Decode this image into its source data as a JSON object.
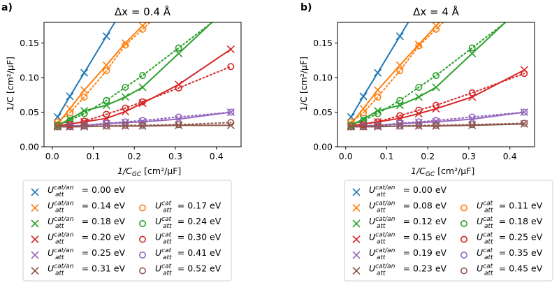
{
  "figure": {
    "colors": {
      "blue": "#1f77b4",
      "orange": "#ff7f0e",
      "green": "#2ca02c",
      "red": "#d62728",
      "purple": "#9467bd",
      "brown": "#8c564b"
    }
  },
  "chart_data": [
    {
      "type": "scatter",
      "panel_tag": "a)",
      "title": "Δx = 0.4 Å",
      "xlabel": "1/C_GC [cm²/μF]",
      "ylabel": "1/C [cm²/μF]",
      "xlim": [
        -0.02,
        0.46
      ],
      "ylim": [
        0.0,
        0.18
      ],
      "xticks": [
        "0.0",
        "0.1",
        "0.2",
        "0.3",
        "0.4"
      ],
      "yticks": [
        "0.00",
        "0.05",
        "0.10",
        "0.15"
      ],
      "x": [
        0.013,
        0.043,
        0.078,
        0.132,
        0.178,
        0.22,
        0.308,
        0.435
      ],
      "grid": false,
      "series": [
        {
          "name": "U_att^cat/an = 0.00 eV",
          "marker": "x",
          "line": "solid",
          "color": "blue",
          "values": [
            0.043,
            0.073,
            0.107,
            0.16,
            null,
            null,
            null,
            null
          ]
        },
        {
          "name": "U_att^cat/an = 0.14 eV",
          "marker": "x",
          "line": "solid",
          "color": "orange",
          "values": [
            0.033,
            0.055,
            0.082,
            0.118,
            0.15,
            0.175,
            null,
            null
          ]
        },
        {
          "name": "U_att^cat/an = 0.18 eV",
          "marker": "x",
          "line": "solid",
          "color": "green",
          "values": [
            0.031,
            0.04,
            0.052,
            0.06,
            0.072,
            0.086,
            0.135,
            null
          ]
        },
        {
          "name": "U_att^cat/an = 0.20 eV",
          "marker": "x",
          "line": "solid",
          "color": "red",
          "values": [
            0.03,
            0.033,
            0.036,
            0.041,
            0.051,
            0.063,
            0.09,
            0.141
          ]
        },
        {
          "name": "U_att^cat/an = 0.25 eV",
          "marker": "x",
          "line": "solid",
          "color": "purple",
          "values": [
            0.029,
            0.03,
            0.031,
            0.033,
            0.035,
            0.036,
            0.04,
            0.05
          ]
        },
        {
          "name": "U_att^cat/an = 0.31 eV",
          "marker": "x",
          "line": "solid",
          "color": "brown",
          "values": [
            0.029,
            0.029,
            0.029,
            0.03,
            0.03,
            0.03,
            0.031,
            0.031
          ]
        },
        {
          "name": "U_att^cat = 0.17 eV",
          "marker": "o",
          "line": "dotted",
          "color": "orange",
          "values": [
            0.036,
            0.049,
            0.072,
            0.11,
            0.147,
            0.17,
            null,
            null
          ]
        },
        {
          "name": "U_att^cat = 0.24 eV",
          "marker": "o",
          "line": "dotted",
          "color": "green",
          "values": [
            0.031,
            0.038,
            0.048,
            0.067,
            0.086,
            0.103,
            0.143,
            null
          ]
        },
        {
          "name": "U_att^cat = 0.30 eV",
          "marker": "o",
          "line": "dotted",
          "color": "red",
          "values": [
            0.029,
            0.032,
            0.037,
            0.047,
            0.056,
            0.065,
            0.085,
            0.116
          ]
        },
        {
          "name": "U_att^cat = 0.41 eV",
          "marker": "o",
          "line": "dotted",
          "color": "purple",
          "values": [
            0.029,
            0.03,
            0.031,
            0.034,
            0.036,
            0.038,
            0.043,
            0.05
          ]
        },
        {
          "name": "U_att^cat = 0.52 eV",
          "marker": "o",
          "line": "dotted",
          "color": "brown",
          "values": [
            0.029,
            0.029,
            0.03,
            0.03,
            0.031,
            0.031,
            0.032,
            0.035
          ]
        }
      ]
    },
    {
      "type": "scatter",
      "panel_tag": "b)",
      "title": "Δx = 4 Å",
      "xlabel": "1/C_GC [cm²/μF]",
      "ylabel": "1/C [cm²/μF]",
      "xlim": [
        -0.02,
        0.46
      ],
      "ylim": [
        0.0,
        0.18
      ],
      "xticks": [
        "0.0",
        "0.1",
        "0.2",
        "0.3",
        "0.4"
      ],
      "yticks": [
        "0.00",
        "0.05",
        "0.10",
        "0.15"
      ],
      "x": [
        0.013,
        0.043,
        0.078,
        0.132,
        0.178,
        0.22,
        0.308,
        0.435
      ],
      "grid": false,
      "series": [
        {
          "name": "U_att^cat/an = 0.00 eV",
          "marker": "x",
          "line": "solid",
          "color": "blue",
          "values": [
            0.043,
            0.073,
            0.107,
            0.16,
            null,
            null,
            null,
            null
          ]
        },
        {
          "name": "U_att^cat/an = 0.08 eV",
          "marker": "x",
          "line": "solid",
          "color": "orange",
          "values": [
            0.033,
            0.055,
            0.082,
            0.118,
            0.148,
            0.175,
            null,
            null
          ]
        },
        {
          "name": "U_att^cat/an = 0.12 eV",
          "marker": "x",
          "line": "solid",
          "color": "green",
          "values": [
            0.031,
            0.04,
            0.052,
            0.06,
            0.072,
            0.086,
            0.135,
            null
          ]
        },
        {
          "name": "U_att^cat/an = 0.15 eV",
          "marker": "x",
          "line": "solid",
          "color": "red",
          "values": [
            0.03,
            0.033,
            0.036,
            0.041,
            0.048,
            0.055,
            0.072,
            0.111
          ]
        },
        {
          "name": "U_att^cat/an = 0.19 eV",
          "marker": "x",
          "line": "solid",
          "color": "purple",
          "values": [
            0.029,
            0.03,
            0.031,
            0.033,
            0.035,
            0.036,
            0.04,
            0.05
          ]
        },
        {
          "name": "U_att^cat/an = 0.23 eV",
          "marker": "x",
          "line": "solid",
          "color": "brown",
          "values": [
            0.029,
            0.029,
            0.029,
            0.03,
            0.03,
            0.03,
            0.031,
            0.033
          ]
        },
        {
          "name": "U_att^cat = 0.11 eV",
          "marker": "o",
          "line": "dotted",
          "color": "orange",
          "values": [
            0.036,
            0.049,
            0.072,
            0.11,
            0.146,
            0.17,
            null,
            null
          ]
        },
        {
          "name": "U_att^cat = 0.18 eV",
          "marker": "o",
          "line": "dotted",
          "color": "green",
          "values": [
            0.031,
            0.038,
            0.048,
            0.067,
            0.086,
            0.103,
            0.143,
            null
          ]
        },
        {
          "name": "U_att^cat = 0.25 eV",
          "marker": "o",
          "line": "dotted",
          "color": "red",
          "values": [
            0.029,
            0.032,
            0.036,
            0.045,
            0.053,
            0.06,
            0.078,
            0.106
          ]
        },
        {
          "name": "U_att^cat = 0.35 eV",
          "marker": "o",
          "line": "dotted",
          "color": "purple",
          "values": [
            0.029,
            0.03,
            0.031,
            0.034,
            0.036,
            0.038,
            0.043,
            0.05
          ]
        },
        {
          "name": "U_att^cat = 0.45 eV",
          "marker": "o",
          "line": "dotted",
          "color": "brown",
          "values": [
            0.029,
            0.029,
            0.03,
            0.03,
            0.031,
            0.031,
            0.032,
            0.034
          ]
        }
      ]
    }
  ]
}
